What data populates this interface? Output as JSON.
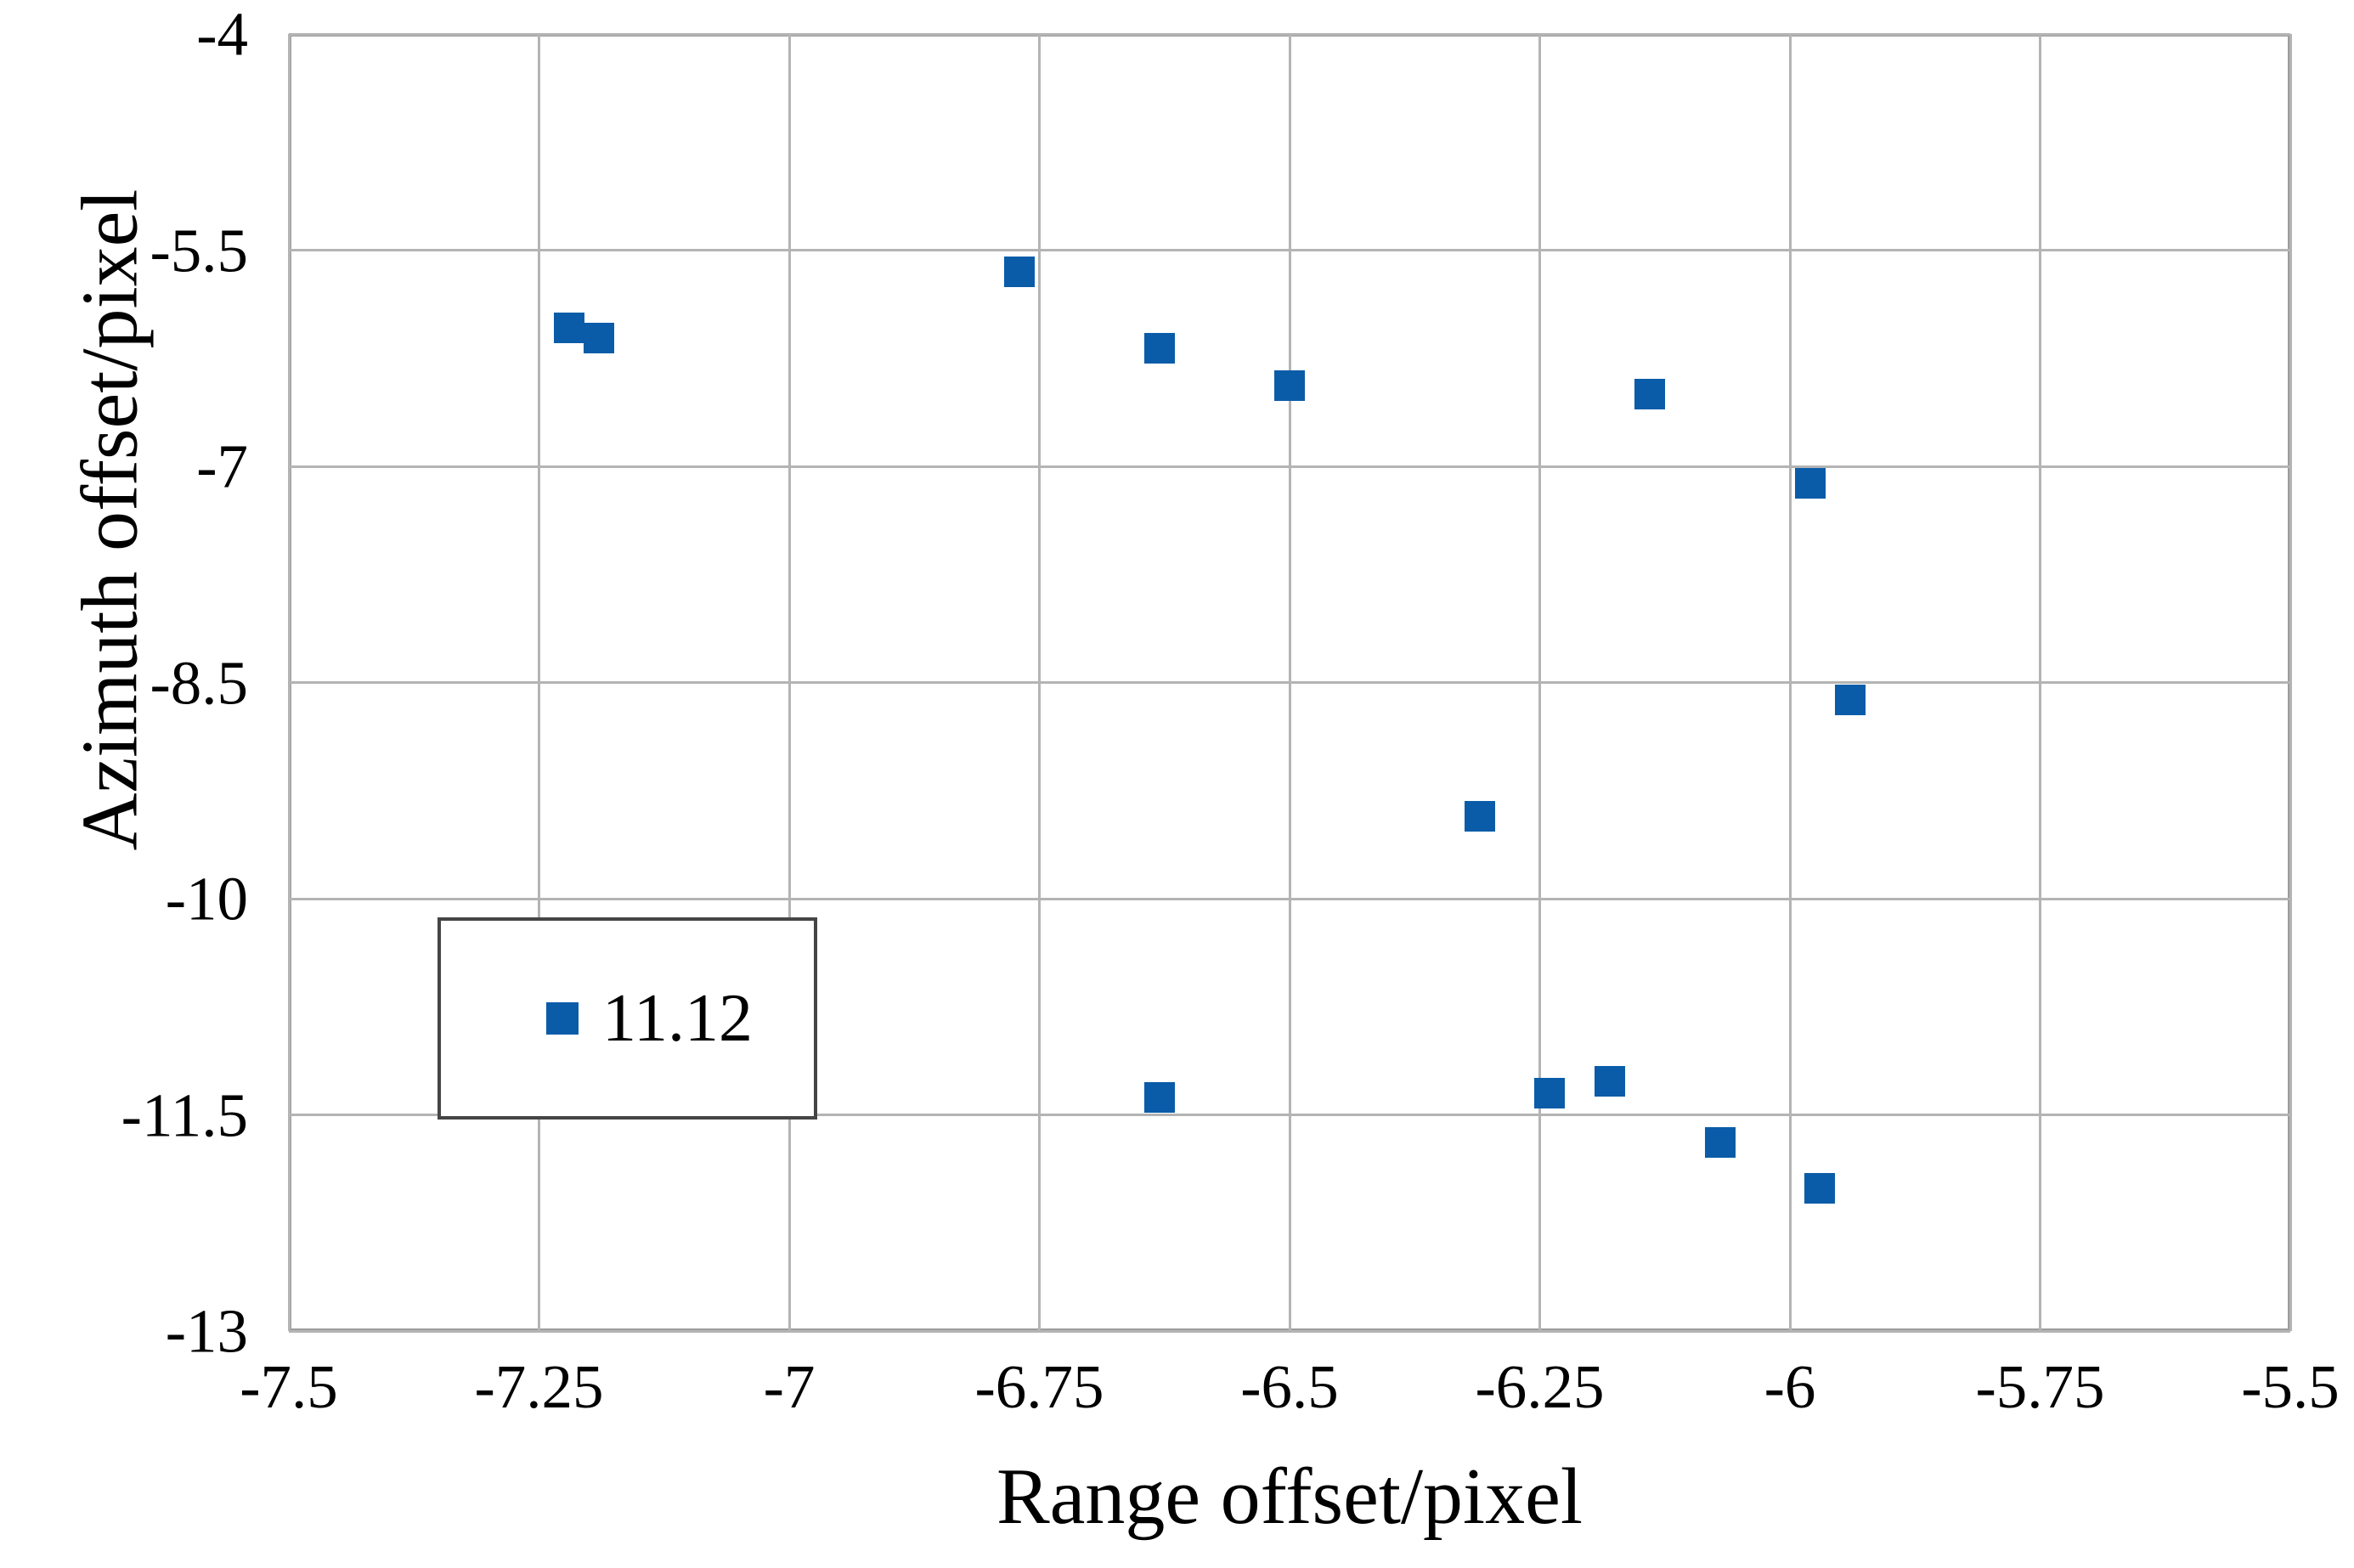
{
  "colors": {
    "marker": "#0a5ca8",
    "gridline": "#b4b4b4",
    "plot_border": "#9c9c9c",
    "legend_border": "#454545",
    "text": "#000000",
    "background": "#ffffff"
  },
  "chart_data": {
    "type": "scatter",
    "title": "",
    "xlabel": "Range offset/pixel",
    "ylabel": "Azimuth offset/pixel",
    "xlim": [
      -7.5,
      -5.5
    ],
    "ylim": [
      -13,
      -4
    ],
    "grid": "on",
    "x_ticks": [
      -7.5,
      -7.25,
      -7,
      -6.75,
      -6.5,
      -6.25,
      -6,
      -5.75,
      -5.5
    ],
    "x_tick_labels": [
      "-7.5",
      "-7.25",
      "-7",
      "-6.75",
      "-6.5",
      "-6.25",
      "-6",
      "-5.75",
      "-5.5"
    ],
    "y_ticks": [
      -4,
      -5.5,
      -7,
      -8.5,
      -10,
      -11.5,
      -13
    ],
    "y_tick_labels": [
      "-4",
      "-5.5",
      "-7",
      "-8.5",
      "-10",
      "-11.5",
      "-13"
    ],
    "legend": {
      "position": "inside-lower-left",
      "entries": [
        {
          "label": "11.12",
          "marker": "square",
          "color": "#0a5ca8"
        }
      ]
    },
    "series": [
      {
        "name": "11.12",
        "marker": "square",
        "color": "#0a5ca8",
        "points": [
          {
            "x": -7.22,
            "y": -6.04
          },
          {
            "x": -7.19,
            "y": -6.11
          },
          {
            "x": -6.77,
            "y": -5.65
          },
          {
            "x": -6.63,
            "y": -6.18
          },
          {
            "x": -6.5,
            "y": -6.44
          },
          {
            "x": -6.14,
            "y": -6.5
          },
          {
            "x": -5.98,
            "y": -7.12
          },
          {
            "x": -5.94,
            "y": -8.62
          },
          {
            "x": -6.31,
            "y": -9.43
          },
          {
            "x": -6.63,
            "y": -11.38
          },
          {
            "x": -6.24,
            "y": -11.35
          },
          {
            "x": -6.18,
            "y": -11.27
          },
          {
            "x": -6.07,
            "y": -11.69
          },
          {
            "x": -5.97,
            "y": -12.01
          }
        ]
      }
    ]
  }
}
